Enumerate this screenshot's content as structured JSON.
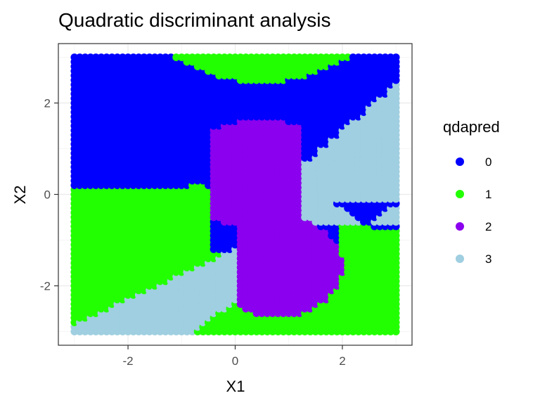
{
  "chart_data": {
    "type": "scatter",
    "title": "Quadratic discriminant analysis",
    "xlabel": "X1",
    "ylabel": "X2",
    "xlim": [
      -3.3,
      3.3
    ],
    "ylim": [
      -3.3,
      3.3
    ],
    "x_ticks": [
      -2,
      0,
      2
    ],
    "y_ticks": [
      -2,
      0,
      2
    ],
    "grid": true,
    "legend": {
      "title": "qdapred",
      "position": "right",
      "entries": [
        {
          "label": "0",
          "color": "#0000ff"
        },
        {
          "label": "1",
          "color": "#22ff00"
        },
        {
          "label": "2",
          "color": "#8b00ee"
        },
        {
          "label": "3",
          "color": "#9fcfe0"
        }
      ]
    },
    "grid_points": {
      "x_range": [
        -3,
        3
      ],
      "y_range": [
        -3,
        3
      ],
      "step": 0.1
    },
    "classes": [
      "0",
      "1",
      "2",
      "3"
    ],
    "colors": {
      "0": "#0000ff",
      "1": "#22ff00",
      "2": "#8b00ee",
      "3": "#9fcfe0"
    }
  }
}
